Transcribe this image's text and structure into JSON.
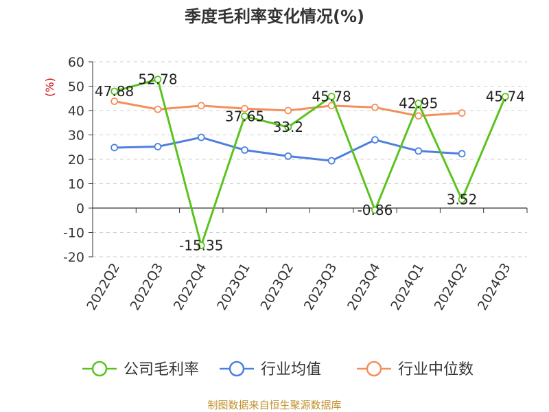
{
  "chart_data": {
    "type": "line",
    "title": "季度毛利率变化情况(%)",
    "ylabel": "(%)",
    "ylim": [
      -20,
      60
    ],
    "yticks": [
      -20,
      -10,
      0,
      10,
      20,
      30,
      40,
      50,
      60
    ],
    "grid": "horizontal-dashed",
    "legend_position": "bottom",
    "categories": [
      "2022Q2",
      "2022Q3",
      "2022Q4",
      "2023Q1",
      "2023Q2",
      "2023Q3",
      "2023Q4",
      "2024Q1",
      "2024Q2",
      "2024Q3"
    ],
    "series": [
      {
        "name": "公司毛利率",
        "color": "#5ac31e",
        "values": [
          47.88,
          52.78,
          -15.35,
          37.65,
          33.2,
          45.78,
          -0.86,
          42.95,
          3.52,
          45.74
        ],
        "labels": [
          "47.88",
          "52.78",
          "-15.35",
          "37.65",
          "33.2",
          "45.78",
          "-0.86",
          "42.95",
          "3.52",
          "45.74"
        ]
      },
      {
        "name": "行业均值",
        "color": "#4d7fe0",
        "values": [
          24.8,
          25.2,
          29.0,
          23.8,
          21.3,
          19.4,
          28.0,
          23.4,
          22.3,
          null
        ]
      },
      {
        "name": "行业中位数",
        "color": "#f58e5a",
        "values": [
          43.8,
          40.5,
          42.0,
          40.8,
          40.0,
          42.0,
          41.3,
          37.8,
          39.0,
          null
        ]
      }
    ]
  },
  "source": "制图数据来自恒生聚源数据库"
}
